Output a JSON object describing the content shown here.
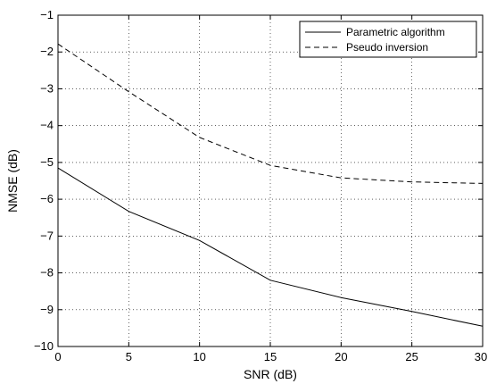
{
  "chart_data": {
    "type": "line",
    "xlabel": "SNR (dB)",
    "ylabel": "NMSE (dB)",
    "xlim": [
      0,
      30
    ],
    "ylim": [
      -10,
      -1
    ],
    "xticks": [
      0,
      5,
      10,
      15,
      20,
      25,
      30
    ],
    "yticks": [
      -10,
      -9,
      -8,
      -7,
      -6,
      -5,
      -4,
      -3,
      -2,
      -1
    ],
    "xtick_labels": [
      "0",
      "5",
      "10",
      "15",
      "20",
      "25",
      "30"
    ],
    "ytick_labels": [
      "−10",
      "−9",
      "−8",
      "−7",
      "−6",
      "−5",
      "−4",
      "−3",
      "−2",
      "−1"
    ],
    "grid": true,
    "legend_position": "top-right",
    "series": [
      {
        "name": "Parametric algorithm",
        "style": "solid",
        "color": "#000000",
        "x": [
          0,
          5,
          10,
          15,
          20,
          25,
          30
        ],
        "y": [
          -5.15,
          -6.33,
          -7.12,
          -8.2,
          -8.67,
          -9.05,
          -9.45
        ]
      },
      {
        "name": "Pseudo inversion",
        "style": "dashed",
        "color": "#000000",
        "x": [
          0,
          5,
          10,
          15,
          20,
          25,
          30
        ],
        "y": [
          -1.78,
          -3.08,
          -4.32,
          -5.08,
          -5.42,
          -5.53,
          -5.57
        ]
      }
    ]
  }
}
